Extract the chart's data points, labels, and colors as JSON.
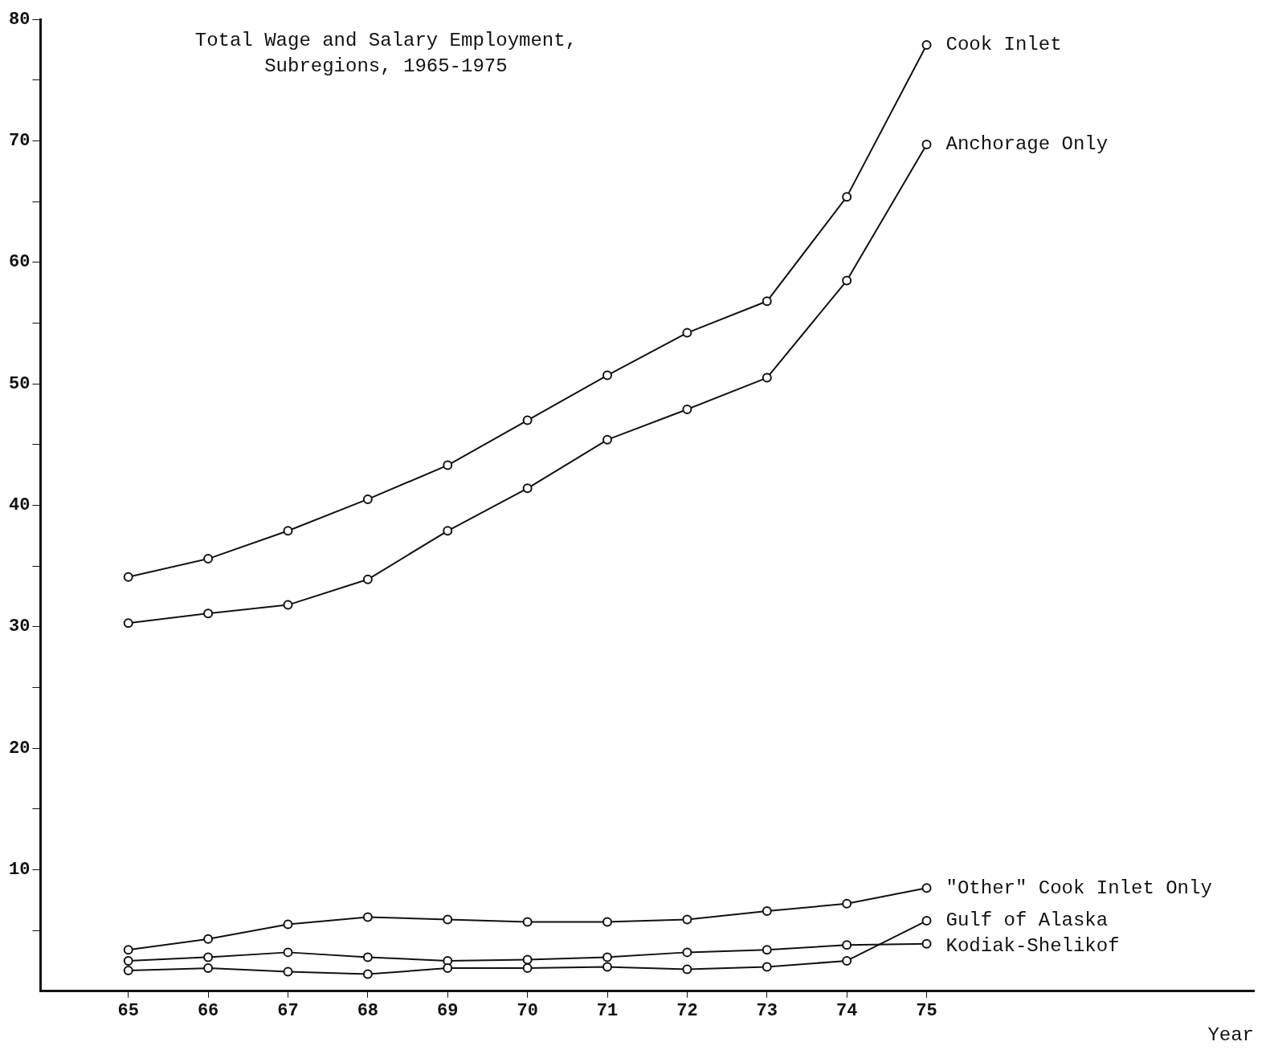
{
  "chart_data": {
    "type": "line",
    "title": "Total Wage and Salary Employment, Subregions, 1965-1975",
    "xlabel": "Year",
    "x": [
      65,
      66,
      67,
      68,
      69,
      70,
      71,
      72,
      73,
      74,
      75
    ],
    "xlim": [
      63.9,
      79.1
    ],
    "xticks": [
      65,
      66,
      67,
      68,
      69,
      70,
      71,
      72,
      73,
      74,
      75
    ],
    "ylim": [
      0,
      80
    ],
    "yticks": [
      {
        "value": 5,
        "label": null
      },
      10,
      {
        "value": 15,
        "label": null
      },
      20,
      {
        "value": 25,
        "label": null
      },
      30,
      {
        "value": 35,
        "label": null
      },
      40,
      {
        "value": 45,
        "label": null
      },
      50,
      {
        "value": 55,
        "label": null
      },
      60,
      {
        "value": 65,
        "label": null
      },
      70,
      {
        "value": 75,
        "label": null
      },
      80
    ],
    "grid": false,
    "legend": false,
    "marker": "circle",
    "line_style": "solid",
    "series": [
      {
        "name": "Cook Inlet",
        "color": "#111111",
        "values": [
          34.1,
          35.6,
          37.9,
          40.5,
          43.3,
          47.0,
          50.7,
          54.2,
          56.8,
          65.4,
          77.9
        ]
      },
      {
        "name": "Anchorage Only",
        "color": "#111111",
        "values": [
          30.3,
          31.1,
          31.8,
          33.9,
          37.9,
          41.4,
          45.4,
          47.9,
          50.5,
          58.5,
          69.7
        ]
      },
      {
        "name": "\"Other\" Cook Inlet Only",
        "color": "#111111",
        "values": [
          3.4,
          4.3,
          5.5,
          6.1,
          5.9,
          5.7,
          5.7,
          5.9,
          6.6,
          7.2,
          8.5
        ]
      },
      {
        "name": "Gulf of Alaska",
        "color": "#111111",
        "values": [
          1.7,
          1.9,
          1.6,
          1.4,
          1.9,
          1.9,
          2.0,
          1.8,
          2.0,
          2.5,
          5.8
        ]
      },
      {
        "name": "Kodiak-Shelikof",
        "color": "#111111",
        "values": [
          2.5,
          2.8,
          3.2,
          2.8,
          2.5,
          2.6,
          2.8,
          3.2,
          3.4,
          3.8,
          3.9
        ]
      }
    ]
  }
}
